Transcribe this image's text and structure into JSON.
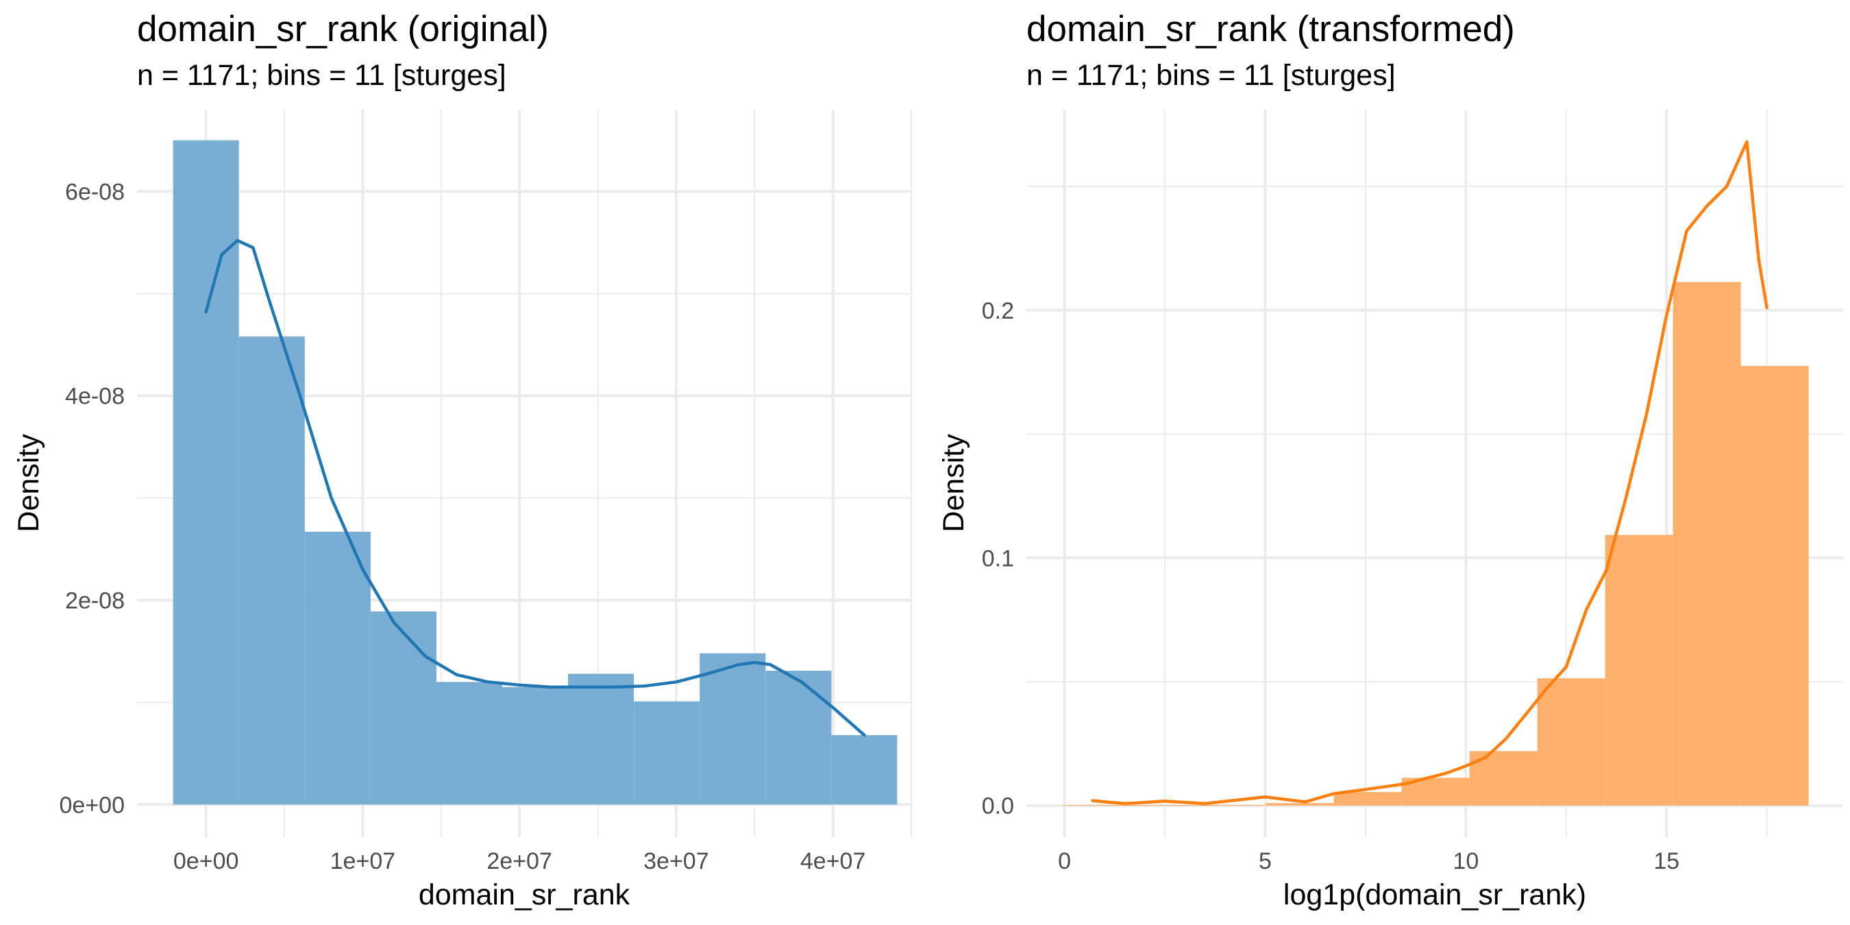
{
  "chart_data": [
    {
      "type": "bar",
      "title": "domain_sr_rank (original)",
      "subtitle": "n = 1171; bins = 11 [sturges]",
      "xlabel": "domain_sr_rank",
      "ylabel": "Density",
      "xlim": [
        -4400000,
        45000000
      ],
      "ylim": [
        -3.2e-09,
        6.8e-08
      ],
      "x_ticks": [
        0,
        10000000,
        20000000,
        30000000,
        40000000
      ],
      "x_tick_labels": [
        "0e+00",
        "1e+07",
        "2e+07",
        "3e+07",
        "4e+07"
      ],
      "y_ticks": [
        0,
        2e-08,
        4e-08,
        6e-08
      ],
      "y_tick_labels": [
        "0e+00",
        "2e-08",
        "4e-08",
        "6e-08"
      ],
      "grid": true,
      "color": "#1f77b4",
      "bar_fill": "#7aadd3",
      "bins": [
        {
          "x0": -2100000,
          "x1": 2100000,
          "density": 6.5e-08
        },
        {
          "x0": 2100000,
          "x1": 6300000,
          "density": 4.58e-08
        },
        {
          "x0": 6300000,
          "x1": 10500000,
          "density": 2.67e-08
        },
        {
          "x0": 10500000,
          "x1": 14700000,
          "density": 1.89e-08
        },
        {
          "x0": 14700000,
          "x1": 18900000,
          "density": 1.2e-08
        },
        {
          "x0": 18900000,
          "x1": 23100000,
          "density": 1.15e-08
        },
        {
          "x0": 23100000,
          "x1": 27300000,
          "density": 1.28e-08
        },
        {
          "x0": 27300000,
          "x1": 31500000,
          "density": 1.01e-08
        },
        {
          "x0": 31500000,
          "x1": 35700000,
          "density": 1.48e-08
        },
        {
          "x0": 35700000,
          "x1": 39900000,
          "density": 1.31e-08
        },
        {
          "x0": 39900000,
          "x1": 44100000,
          "density": 6.8e-09
        }
      ],
      "density_curve": {
        "x": [
          0,
          1000000,
          2000000,
          3000000,
          4000000,
          6000000,
          8000000,
          10000000,
          12000000,
          14000000,
          16000000,
          18000000,
          20000000,
          22000000,
          24000000,
          26000000,
          28000000,
          30000000,
          32000000,
          34000000,
          35000000,
          36000000,
          38000000,
          40000000,
          42000000
        ],
        "y": [
          4.82e-08,
          5.38e-08,
          5.52e-08,
          5.45e-08,
          4.95e-08,
          4e-08,
          3e-08,
          2.3e-08,
          1.78e-08,
          1.45e-08,
          1.27e-08,
          1.2e-08,
          1.17e-08,
          1.15e-08,
          1.15e-08,
          1.15e-08,
          1.16e-08,
          1.2e-08,
          1.28e-08,
          1.37e-08,
          1.39e-08,
          1.37e-08,
          1.2e-08,
          9.5e-09,
          6.8e-09
        ]
      }
    },
    {
      "type": "bar",
      "title": "domain_sr_rank (transformed)",
      "subtitle": "n = 1171; bins = 11 [sturges]",
      "xlabel": "log1p(domain_sr_rank)",
      "ylabel": "Density",
      "xlim": [
        -0.95,
        19.4
      ],
      "ylim": [
        -0.0128,
        0.281
      ],
      "x_ticks": [
        0,
        5,
        10,
        15
      ],
      "x_tick_labels": [
        "0",
        "5",
        "10",
        "15"
      ],
      "y_ticks": [
        0,
        0.1,
        0.2
      ],
      "y_tick_labels": [
        "0.0",
        "0.1",
        "0.2"
      ],
      "grid": true,
      "color": "#ff7f0e",
      "bar_fill": "#fdb06b",
      "bins": [
        {
          "x0": -0.05,
          "x1": 1.64,
          "density": 0.0002
        },
        {
          "x0": 1.64,
          "x1": 3.33,
          "density": 0.0002
        },
        {
          "x0": 3.33,
          "x1": 5.02,
          "density": 0.0002
        },
        {
          "x0": 5.02,
          "x1": 6.71,
          "density": 0.001
        },
        {
          "x0": 6.71,
          "x1": 8.4,
          "density": 0.0055
        },
        {
          "x0": 8.4,
          "x1": 10.09,
          "density": 0.0112
        },
        {
          "x0": 10.09,
          "x1": 11.78,
          "density": 0.022
        },
        {
          "x0": 11.78,
          "x1": 13.47,
          "density": 0.0514
        },
        {
          "x0": 13.47,
          "x1": 15.16,
          "density": 0.1093
        },
        {
          "x0": 15.16,
          "x1": 16.85,
          "density": 0.2114
        },
        {
          "x0": 16.85,
          "x1": 18.54,
          "density": 0.1775
        }
      ],
      "density_curve": {
        "x": [
          0.7,
          1.0,
          1.5,
          2.5,
          3.5,
          5.0,
          6.0,
          6.7,
          7.5,
          8.5,
          9.0,
          9.5,
          10.0,
          10.5,
          11.0,
          11.5,
          12.0,
          12.5,
          13.0,
          13.5,
          14.0,
          14.5,
          15.0,
          15.5,
          16.0,
          16.5,
          17.0,
          17.3,
          17.5
        ],
        "y": [
          0.002,
          0.0015,
          0.0008,
          0.0018,
          0.0008,
          0.0035,
          0.0015,
          0.0048,
          0.0065,
          0.0088,
          0.011,
          0.013,
          0.016,
          0.0195,
          0.027,
          0.037,
          0.047,
          0.056,
          0.079,
          0.095,
          0.125,
          0.158,
          0.198,
          0.232,
          0.242,
          0.25,
          0.268,
          0.22,
          0.201
        ]
      }
    }
  ]
}
